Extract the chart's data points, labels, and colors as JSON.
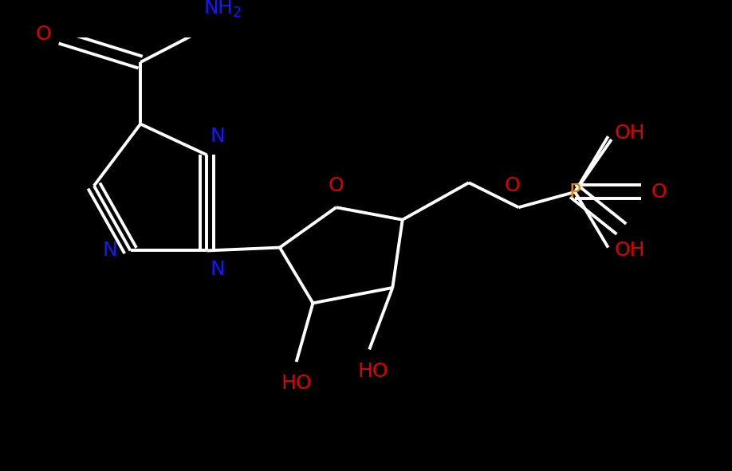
{
  "background_color": "#000000",
  "bond_color": "#ffffff",
  "bond_width": 2.8,
  "figsize": [
    9.18,
    5.91
  ],
  "dpi": 100,
  "xlim": [
    -0.5,
    10.5
  ],
  "ylim": [
    -0.5,
    6.5
  ]
}
